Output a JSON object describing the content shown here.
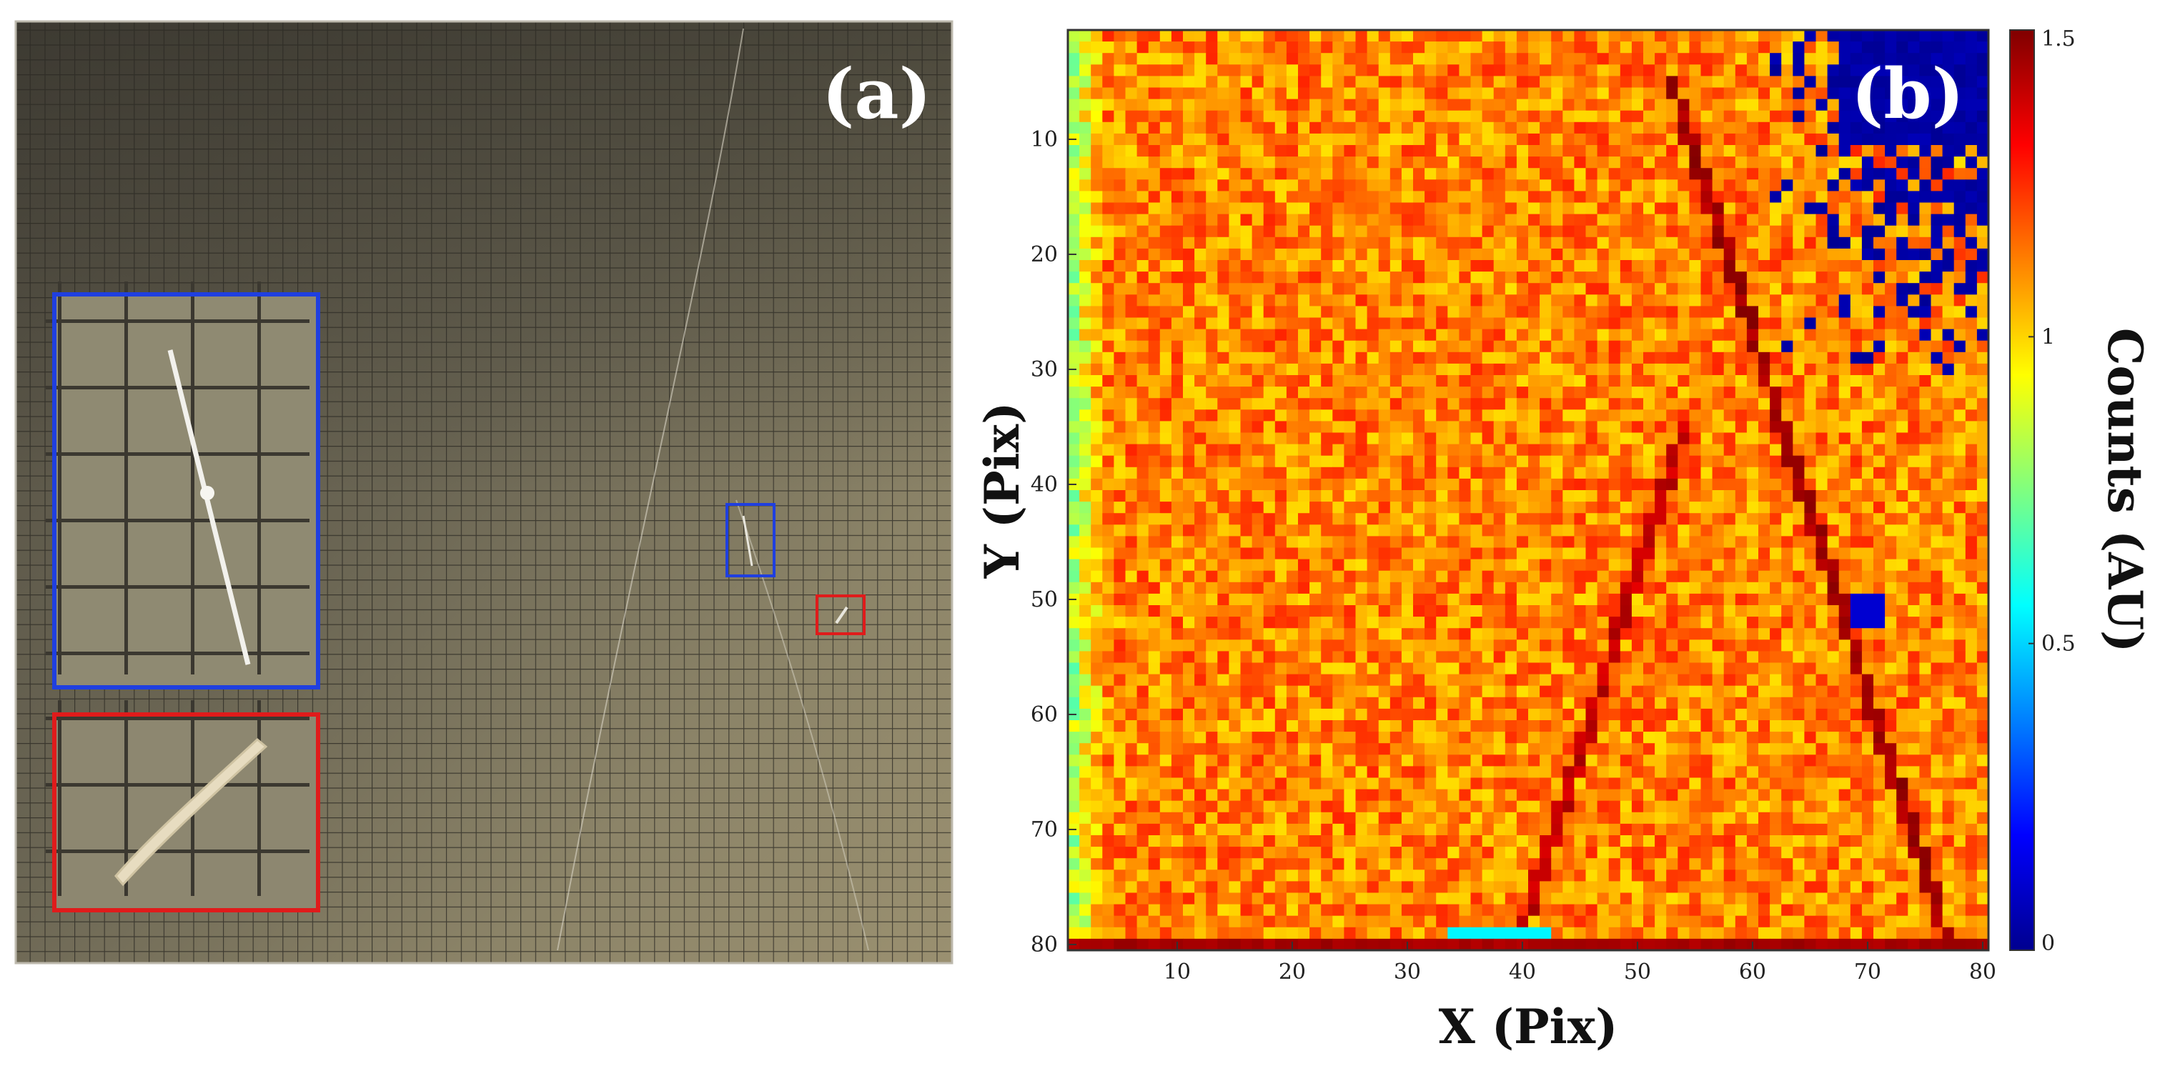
{
  "figure": {
    "panel_a": {
      "label": "(a)",
      "description_colors": {
        "blue_box": "#1f3fe0",
        "red_box": "#e01b1b"
      }
    },
    "panel_b_label": "(b)"
  },
  "chart_data": {
    "type": "heatmap",
    "title": "",
    "xlabel": "X (Pix)",
    "ylabel": "Y (Pix)",
    "x_range": [
      1,
      80
    ],
    "y_range": [
      1,
      80
    ],
    "x_ticks": [
      10,
      20,
      30,
      40,
      50,
      60,
      70,
      80
    ],
    "y_ticks": [
      10,
      20,
      30,
      40,
      50,
      60,
      70,
      80
    ],
    "colorbar": {
      "label": "Counts (AU)",
      "range": [
        0,
        1.5
      ],
      "ticks": [
        0,
        0.5,
        1,
        1.5
      ],
      "tick_labels": [
        "0",
        "0.5",
        "1",
        "1.5"
      ],
      "colormap": "jet"
    },
    "baseline_value": 1.12,
    "features": [
      {
        "name": "diagonal line 1",
        "from": [
          40,
          79
        ],
        "to": [
          54,
          35
        ],
        "value": 1.45
      },
      {
        "name": "diagonal line 2",
        "from": [
          53,
          5
        ],
        "to": [
          77,
          80
        ],
        "value": 1.5
      },
      {
        "name": "low-count region top-right",
        "x": [
          62,
          80
        ],
        "y": [
          1,
          30
        ],
        "value": 0.05
      },
      {
        "name": "low spot",
        "x": 70,
        "y": 51,
        "value": 0.1
      },
      {
        "name": "bottom hot row",
        "y": 80,
        "value": 1.45
      }
    ]
  }
}
